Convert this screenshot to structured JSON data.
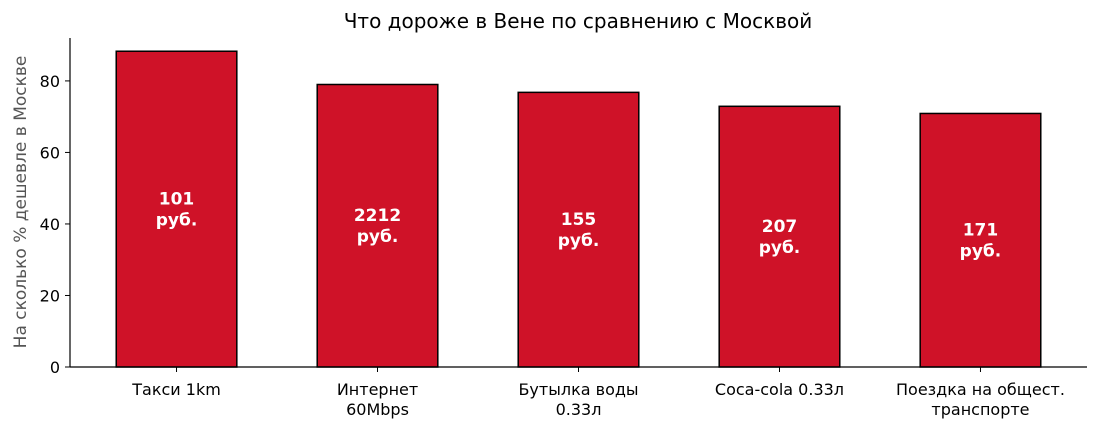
{
  "chart_data": {
    "type": "bar",
    "title": "Что дороже в Вене по сравнению с Москвой",
    "xlabel": "",
    "ylabel": "На сколько % дешевле в Москве",
    "categories": [
      [
        "Такси 1km"
      ],
      [
        "Интернет",
        "60Mbps"
      ],
      [
        "Бутылка воды",
        "0.33л"
      ],
      [
        "Coca-cola 0.33л"
      ],
      [
        "Поездка на общест.",
        "транспорте"
      ]
    ],
    "values": [
      88.3,
      79.0,
      76.8,
      72.9,
      70.9
    ],
    "data_labels": [
      [
        "101",
        "руб."
      ],
      [
        "2212",
        "руб."
      ],
      [
        "155",
        "руб."
      ],
      [
        "207",
        "руб."
      ],
      [
        "171",
        "руб."
      ]
    ],
    "ylim": [
      0,
      92
    ],
    "yticks": [
      0,
      20,
      40,
      60,
      80
    ],
    "grid": false,
    "bar_color": "#cf1228",
    "edge_color": "#000000"
  }
}
